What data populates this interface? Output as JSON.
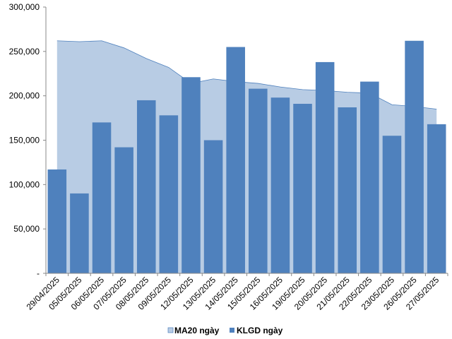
{
  "chart_data": {
    "type": "bar",
    "categories": [
      "29/04/2025",
      "05/05/2025",
      "06/05/2025",
      "07/05/2025",
      "08/05/2025",
      "09/05/2025",
      "12/05/2025",
      "13/05/2025",
      "14/05/2025",
      "15/05/2025",
      "16/05/2025",
      "19/05/2025",
      "20/05/2025",
      "21/05/2025",
      "22/05/2025",
      "23/05/2025",
      "26/05/2025",
      "27/05/2025"
    ],
    "series": [
      {
        "name": "MA20 ngày",
        "type": "area",
        "color": "#b8cce4",
        "edge_color": "#4f81bd",
        "values": [
          262000,
          261000,
          262000,
          254000,
          242000,
          232000,
          214000,
          219000,
          216000,
          214000,
          210000,
          207000,
          206000,
          204000,
          203000,
          190000,
          188000,
          185000
        ]
      },
      {
        "name": "KLGD ngày",
        "type": "bar",
        "color": "#4f81bd",
        "values": [
          117000,
          90000,
          170000,
          142000,
          195000,
          178000,
          221000,
          150000,
          255000,
          208000,
          198000,
          191000,
          238000,
          187000,
          216000,
          155000,
          262000,
          168000
        ]
      }
    ],
    "y_ticks": [
      "-",
      "50,000",
      "100,000",
      "150,000",
      "200,000",
      "250,000",
      "300,000"
    ],
    "ylim": [
      0,
      300000
    ],
    "grid": false,
    "legend_position": "bottom"
  }
}
